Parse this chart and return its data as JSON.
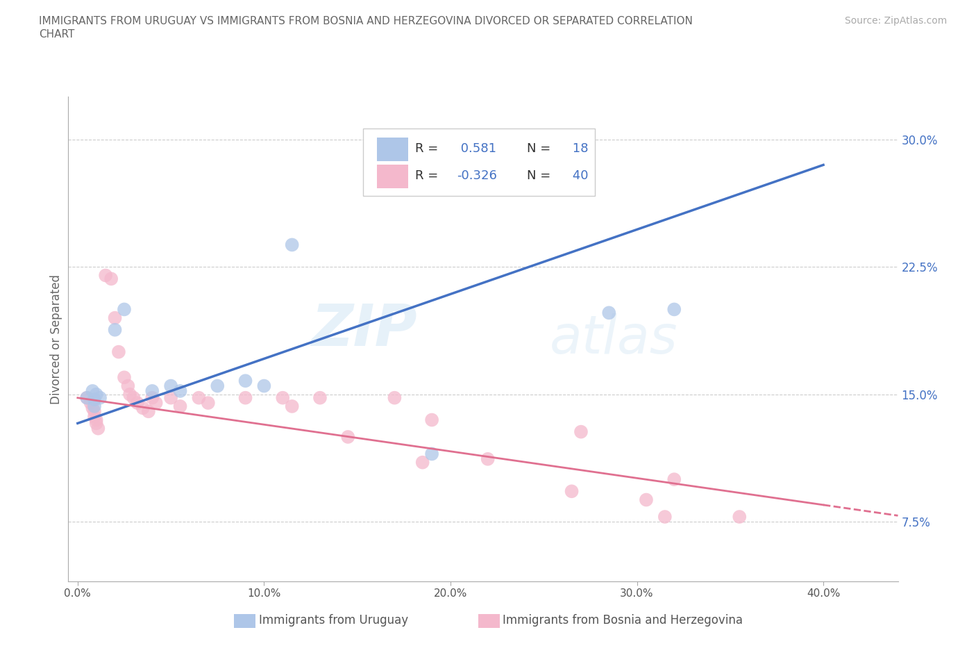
{
  "title_line1": "IMMIGRANTS FROM URUGUAY VS IMMIGRANTS FROM BOSNIA AND HERZEGOVINA DIVORCED OR SEPARATED CORRELATION",
  "title_line2": "CHART",
  "source": "Source: ZipAtlas.com",
  "ylabel": "Divorced or Separated",
  "right_yticks": [
    "30.0%",
    "22.5%",
    "15.0%",
    "7.5%"
  ],
  "right_ytick_vals": [
    0.3,
    0.225,
    0.15,
    0.075
  ],
  "xmin": 0.0,
  "xmax": 0.4,
  "ymin": 0.04,
  "ymax": 0.325,
  "watermark_zip": "ZIP",
  "watermark_atlas": "atlas",
  "blue_color": "#aec6e8",
  "pink_color": "#f4b8cc",
  "blue_line_color": "#4472c4",
  "pink_line_color": "#e07090",
  "legend_blue_r": "0.581",
  "legend_blue_n": "18",
  "legend_pink_r": "-0.326",
  "legend_pink_n": "40",
  "blue_scatter": [
    [
      0.005,
      0.148
    ],
    [
      0.008,
      0.152
    ],
    [
      0.009,
      0.147
    ],
    [
      0.009,
      0.143
    ],
    [
      0.01,
      0.15
    ],
    [
      0.012,
      0.148
    ],
    [
      0.02,
      0.188
    ],
    [
      0.025,
      0.2
    ],
    [
      0.04,
      0.152
    ],
    [
      0.05,
      0.155
    ],
    [
      0.055,
      0.152
    ],
    [
      0.075,
      0.155
    ],
    [
      0.09,
      0.158
    ],
    [
      0.1,
      0.155
    ],
    [
      0.115,
      0.238
    ],
    [
      0.19,
      0.115
    ],
    [
      0.285,
      0.198
    ],
    [
      0.32,
      0.2
    ]
  ],
  "pink_scatter": [
    [
      0.005,
      0.148
    ],
    [
      0.007,
      0.145
    ],
    [
      0.008,
      0.142
    ],
    [
      0.009,
      0.14
    ],
    [
      0.009,
      0.137
    ],
    [
      0.01,
      0.135
    ],
    [
      0.01,
      0.133
    ],
    [
      0.011,
      0.13
    ],
    [
      0.015,
      0.22
    ],
    [
      0.018,
      0.218
    ],
    [
      0.02,
      0.195
    ],
    [
      0.022,
      0.175
    ],
    [
      0.025,
      0.16
    ],
    [
      0.027,
      0.155
    ],
    [
      0.028,
      0.15
    ],
    [
      0.03,
      0.148
    ],
    [
      0.032,
      0.145
    ],
    [
      0.035,
      0.142
    ],
    [
      0.038,
      0.14
    ],
    [
      0.04,
      0.148
    ],
    [
      0.042,
      0.145
    ],
    [
      0.05,
      0.148
    ],
    [
      0.055,
      0.143
    ],
    [
      0.065,
      0.148
    ],
    [
      0.07,
      0.145
    ],
    [
      0.09,
      0.148
    ],
    [
      0.11,
      0.148
    ],
    [
      0.115,
      0.143
    ],
    [
      0.13,
      0.148
    ],
    [
      0.145,
      0.125
    ],
    [
      0.17,
      0.148
    ],
    [
      0.185,
      0.11
    ],
    [
      0.19,
      0.135
    ],
    [
      0.22,
      0.112
    ],
    [
      0.265,
      0.093
    ],
    [
      0.27,
      0.128
    ],
    [
      0.305,
      0.088
    ],
    [
      0.315,
      0.078
    ],
    [
      0.32,
      0.1
    ],
    [
      0.355,
      0.078
    ]
  ],
  "bottom_legend_left": "Immigrants from Uruguay",
  "bottom_legend_right": "Immigrants from Bosnia and Herzegovina",
  "xtick_labels": [
    "0.0%",
    "10.0%",
    "20.0%",
    "30.0%",
    "40.0%"
  ],
  "xtick_vals": [
    0.0,
    0.1,
    0.2,
    0.3,
    0.4
  ]
}
